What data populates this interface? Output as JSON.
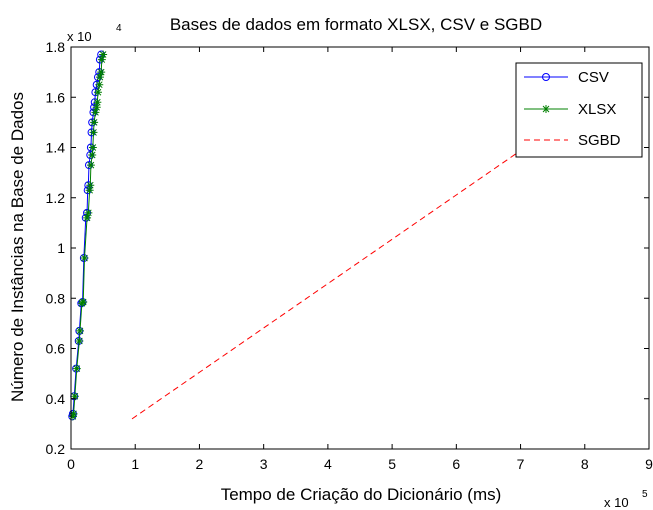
{
  "chart_data": {
    "type": "line",
    "title": "Bases de dados em formato XLSX, CSV e SGBD",
    "xlabel": "Tempo de Criação do Dicionário (ms)",
    "ylabel": "Número de Instâncias na Base de Dados",
    "x_multiplier": {
      "base": "x 10",
      "exp": "5"
    },
    "y_multiplier": {
      "base": "x 10",
      "exp": "4"
    },
    "xlim": [
      0,
      900000
    ],
    "ylim": [
      2000,
      18000
    ],
    "x_ticks": [
      {
        "value": 0,
        "label": "0"
      },
      {
        "value": 100000,
        "label": "1"
      },
      {
        "value": 200000,
        "label": "2"
      },
      {
        "value": 300000,
        "label": "3"
      },
      {
        "value": 400000,
        "label": "4"
      },
      {
        "value": 500000,
        "label": "5"
      },
      {
        "value": 600000,
        "label": "6"
      },
      {
        "value": 700000,
        "label": "7"
      },
      {
        "value": 800000,
        "label": "8"
      },
      {
        "value": 900000,
        "label": "9"
      }
    ],
    "y_ticks": [
      {
        "value": 2000,
        "label": "0.2"
      },
      {
        "value": 4000,
        "label": "0.4"
      },
      {
        "value": 6000,
        "label": "0.6"
      },
      {
        "value": 8000,
        "label": "0.8"
      },
      {
        "value": 10000,
        "label": "1"
      },
      {
        "value": 12000,
        "label": "1.2"
      },
      {
        "value": 14000,
        "label": "1.4"
      },
      {
        "value": 16000,
        "label": "1.6"
      },
      {
        "value": 18000,
        "label": "1.8"
      }
    ],
    "grid": false,
    "legend": "top-right",
    "series": [
      {
        "name": "CSV",
        "color": "#0000ff",
        "marker": "circle",
        "line": "solid",
        "points": [
          [
            2000,
            3300
          ],
          [
            3000,
            3400
          ],
          [
            5000,
            4100
          ],
          [
            8000,
            5200
          ],
          [
            12000,
            6300
          ],
          [
            13000,
            6700
          ],
          [
            16000,
            7800
          ],
          [
            18000,
            7850
          ],
          [
            20000,
            9600
          ],
          [
            23000,
            11200
          ],
          [
            25000,
            11400
          ],
          [
            26000,
            12300
          ],
          [
            27000,
            12500
          ],
          [
            28000,
            13300
          ],
          [
            30000,
            13700
          ],
          [
            31000,
            14000
          ],
          [
            32000,
            14600
          ],
          [
            33000,
            15000
          ],
          [
            35000,
            15400
          ],
          [
            36000,
            15600
          ],
          [
            37000,
            15800
          ],
          [
            38000,
            16200
          ],
          [
            40000,
            16500
          ],
          [
            42000,
            16800
          ],
          [
            44000,
            17000
          ],
          [
            45000,
            17500
          ],
          [
            47000,
            17700
          ]
        ]
      },
      {
        "name": "XLSX",
        "color": "#008000",
        "marker": "star",
        "line": "solid",
        "points": [
          [
            3000,
            3300
          ],
          [
            4000,
            3400
          ],
          [
            6000,
            4100
          ],
          [
            9000,
            5200
          ],
          [
            13000,
            6300
          ],
          [
            14000,
            6700
          ],
          [
            17000,
            7800
          ],
          [
            19000,
            7850
          ],
          [
            21000,
            9600
          ],
          [
            25000,
            11200
          ],
          [
            27000,
            11400
          ],
          [
            29000,
            12300
          ],
          [
            30000,
            12500
          ],
          [
            31000,
            13300
          ],
          [
            33000,
            13700
          ],
          [
            34000,
            14000
          ],
          [
            35000,
            14600
          ],
          [
            36000,
            15000
          ],
          [
            38000,
            15400
          ],
          [
            40000,
            15600
          ],
          [
            41000,
            15800
          ],
          [
            42000,
            16200
          ],
          [
            44000,
            16500
          ],
          [
            45000,
            16800
          ],
          [
            47000,
            17000
          ],
          [
            48000,
            17500
          ],
          [
            50000,
            17700
          ]
        ]
      },
      {
        "name": "SGBD",
        "color": "#ff0000",
        "marker": "none",
        "line": "dashed",
        "points": [
          [
            95000,
            3200
          ],
          [
            775000,
            15200
          ]
        ]
      }
    ]
  }
}
